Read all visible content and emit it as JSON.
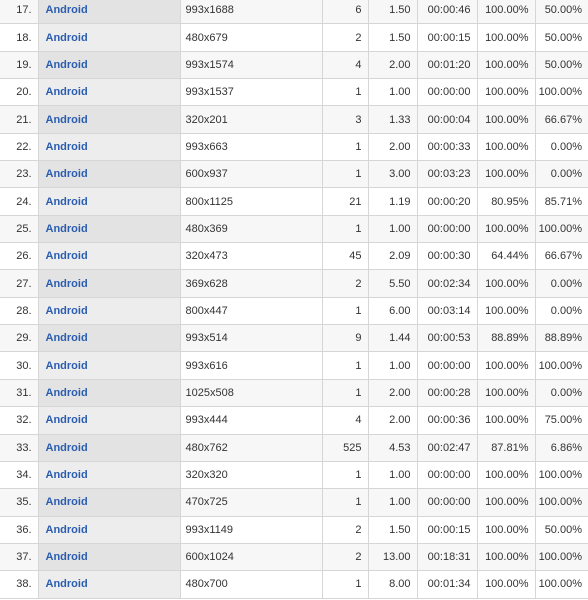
{
  "table": {
    "rows": [
      {
        "index": "17.",
        "os": "Android",
        "resolution": "993x1688",
        "sessions": "6",
        "pages_per_session": "1.50",
        "avg_duration": "00:00:46",
        "new_sessions": "100.00%",
        "bounce_rate": "50.00%"
      },
      {
        "index": "18.",
        "os": "Android",
        "resolution": "480x679",
        "sessions": "2",
        "pages_per_session": "1.50",
        "avg_duration": "00:00:15",
        "new_sessions": "100.00%",
        "bounce_rate": "50.00%"
      },
      {
        "index": "19.",
        "os": "Android",
        "resolution": "993x1574",
        "sessions": "4",
        "pages_per_session": "2.00",
        "avg_duration": "00:01:20",
        "new_sessions": "100.00%",
        "bounce_rate": "50.00%"
      },
      {
        "index": "20.",
        "os": "Android",
        "resolution": "993x1537",
        "sessions": "1",
        "pages_per_session": "1.00",
        "avg_duration": "00:00:00",
        "new_sessions": "100.00%",
        "bounce_rate": "100.00%"
      },
      {
        "index": "21.",
        "os": "Android",
        "resolution": "320x201",
        "sessions": "3",
        "pages_per_session": "1.33",
        "avg_duration": "00:00:04",
        "new_sessions": "100.00%",
        "bounce_rate": "66.67%"
      },
      {
        "index": "22.",
        "os": "Android",
        "resolution": "993x663",
        "sessions": "1",
        "pages_per_session": "2.00",
        "avg_duration": "00:00:33",
        "new_sessions": "100.00%",
        "bounce_rate": "0.00%"
      },
      {
        "index": "23.",
        "os": "Android",
        "resolution": "600x937",
        "sessions": "1",
        "pages_per_session": "3.00",
        "avg_duration": "00:03:23",
        "new_sessions": "100.00%",
        "bounce_rate": "0.00%"
      },
      {
        "index": "24.",
        "os": "Android",
        "resolution": "800x1125",
        "sessions": "21",
        "pages_per_session": "1.19",
        "avg_duration": "00:00:20",
        "new_sessions": "80.95%",
        "bounce_rate": "85.71%"
      },
      {
        "index": "25.",
        "os": "Android",
        "resolution": "480x369",
        "sessions": "1",
        "pages_per_session": "1.00",
        "avg_duration": "00:00:00",
        "new_sessions": "100.00%",
        "bounce_rate": "100.00%"
      },
      {
        "index": "26.",
        "os": "Android",
        "resolution": "320x473",
        "sessions": "45",
        "pages_per_session": "2.09",
        "avg_duration": "00:00:30",
        "new_sessions": "64.44%",
        "bounce_rate": "66.67%"
      },
      {
        "index": "27.",
        "os": "Android",
        "resolution": "369x628",
        "sessions": "2",
        "pages_per_session": "5.50",
        "avg_duration": "00:02:34",
        "new_sessions": "100.00%",
        "bounce_rate": "0.00%"
      },
      {
        "index": "28.",
        "os": "Android",
        "resolution": "800x447",
        "sessions": "1",
        "pages_per_session": "6.00",
        "avg_duration": "00:03:14",
        "new_sessions": "100.00%",
        "bounce_rate": "0.00%"
      },
      {
        "index": "29.",
        "os": "Android",
        "resolution": "993x514",
        "sessions": "9",
        "pages_per_session": "1.44",
        "avg_duration": "00:00:53",
        "new_sessions": "88.89%",
        "bounce_rate": "88.89%"
      },
      {
        "index": "30.",
        "os": "Android",
        "resolution": "993x616",
        "sessions": "1",
        "pages_per_session": "1.00",
        "avg_duration": "00:00:00",
        "new_sessions": "100.00%",
        "bounce_rate": "100.00%"
      },
      {
        "index": "31.",
        "os": "Android",
        "resolution": "1025x508",
        "sessions": "1",
        "pages_per_session": "2.00",
        "avg_duration": "00:00:28",
        "new_sessions": "100.00%",
        "bounce_rate": "0.00%"
      },
      {
        "index": "32.",
        "os": "Android",
        "resolution": "993x444",
        "sessions": "4",
        "pages_per_session": "2.00",
        "avg_duration": "00:00:36",
        "new_sessions": "100.00%",
        "bounce_rate": "75.00%"
      },
      {
        "index": "33.",
        "os": "Android",
        "resolution": "480x762",
        "sessions": "525",
        "pages_per_session": "4.53",
        "avg_duration": "00:02:47",
        "new_sessions": "87.81%",
        "bounce_rate": "6.86%"
      },
      {
        "index": "34.",
        "os": "Android",
        "resolution": "320x320",
        "sessions": "1",
        "pages_per_session": "1.00",
        "avg_duration": "00:00:00",
        "new_sessions": "100.00%",
        "bounce_rate": "100.00%"
      },
      {
        "index": "35.",
        "os": "Android",
        "resolution": "470x725",
        "sessions": "1",
        "pages_per_session": "1.00",
        "avg_duration": "00:00:00",
        "new_sessions": "100.00%",
        "bounce_rate": "100.00%"
      },
      {
        "index": "36.",
        "os": "Android",
        "resolution": "993x1149",
        "sessions": "2",
        "pages_per_session": "1.50",
        "avg_duration": "00:00:15",
        "new_sessions": "100.00%",
        "bounce_rate": "50.00%"
      },
      {
        "index": "37.",
        "os": "Android",
        "resolution": "600x1024",
        "sessions": "2",
        "pages_per_session": "13.00",
        "avg_duration": "00:18:31",
        "new_sessions": "100.00%",
        "bounce_rate": "100.00%"
      },
      {
        "index": "38.",
        "os": "Android",
        "resolution": "480x700",
        "sessions": "1",
        "pages_per_session": "8.00",
        "avg_duration": "00:01:34",
        "new_sessions": "100.00%",
        "bounce_rate": "100.00%"
      }
    ]
  }
}
